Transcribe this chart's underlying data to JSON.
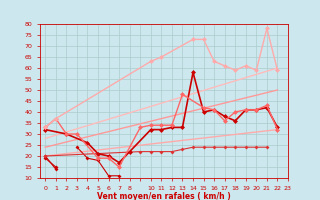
{
  "xlabel": "Vent moyen/en rafales ( km/h )",
  "background_color": "#cce8ee",
  "grid_color": "#aacccc",
  "x_values": [
    0,
    1,
    2,
    3,
    4,
    5,
    6,
    7,
    8,
    10,
    11,
    12,
    13,
    14,
    15,
    16,
    17,
    18,
    19,
    20,
    21,
    22,
    23
  ],
  "line_dark1": [
    19,
    15,
    null,
    null,
    null,
    null,
    null,
    null,
    null,
    null,
    null,
    null,
    null,
    null,
    null,
    null,
    null,
    null,
    null,
    null,
    null,
    null,
    null
  ],
  "line_dark2": [
    20,
    14,
    null,
    null,
    null,
    null,
    null,
    null,
    null,
    null,
    null,
    null,
    null,
    null,
    null,
    null,
    null,
    null,
    null,
    null,
    null,
    null,
    null
  ],
  "line_dark_mid": [
    null,
    null,
    null,
    24,
    19,
    18,
    11,
    11,
    null,
    null,
    null,
    null,
    null,
    null,
    null,
    null,
    null,
    null,
    null,
    null,
    null,
    null,
    null
  ],
  "line_medium_low": [
    20,
    null,
    null,
    null,
    null,
    null,
    null,
    null,
    null,
    22,
    22,
    22,
    22,
    23,
    24,
    24,
    24,
    24,
    24,
    24,
    24,
    24,
    null
  ],
  "line_main_dark": [
    32,
    null,
    30,
    null,
    26,
    21,
    20,
    17,
    22,
    null,
    32,
    32,
    33,
    33,
    58,
    40,
    41,
    38,
    36,
    41,
    41,
    42,
    33
  ],
  "line_main_med": [
    33,
    37,
    30,
    30,
    null,
    19,
    19,
    15,
    null,
    33,
    34,
    34,
    34,
    48,
    null,
    42,
    41,
    36,
    40,
    41,
    41,
    43,
    32
  ],
  "line_light_upper": [
    33,
    37,
    null,
    null,
    null,
    null,
    null,
    null,
    null,
    null,
    63,
    65,
    null,
    null,
    73,
    73,
    63,
    61,
    59,
    61,
    59,
    78,
    59
  ],
  "line_reg1": [
    0,
    20,
    23,
    32
  ],
  "line_reg2": [
    0,
    24,
    23,
    50
  ],
  "line_reg3": [
    0,
    28,
    23,
    60
  ],
  "ylim": [
    10,
    80
  ],
  "yticks": [
    10,
    15,
    20,
    25,
    30,
    35,
    40,
    45,
    50,
    55,
    60,
    65,
    70,
    75,
    80
  ],
  "xtick_labels": [
    "0",
    "1",
    "2",
    "3",
    "4",
    "5",
    "6",
    "7",
    "8",
    "",
    "10",
    "11",
    "12",
    "13",
    "14",
    "15",
    "16",
    "17",
    "18",
    "19",
    "20",
    "21",
    "22",
    "23"
  ],
  "xtick_pos": [
    0,
    1,
    2,
    3,
    4,
    5,
    6,
    7,
    8,
    9,
    10,
    11,
    12,
    13,
    14,
    15,
    16,
    17,
    18,
    19,
    20,
    21,
    22,
    23
  ]
}
